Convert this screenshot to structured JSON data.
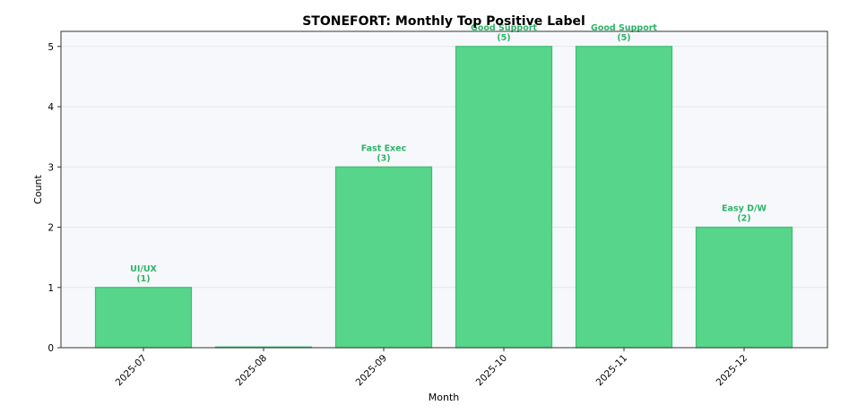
{
  "chart_data": {
    "type": "bar",
    "title": "STONEFORT: Monthly Top Positive Label",
    "xlabel": "Month",
    "ylabel": "Count",
    "categories": [
      "2025-07",
      "2025-08",
      "2025-09",
      "2025-10",
      "2025-11",
      "2025-12"
    ],
    "values": [
      1,
      0,
      3,
      5,
      5,
      2
    ],
    "bar_labels": [
      "UI/UX",
      "",
      "Fast Exec",
      "Good Support",
      "Good Support",
      "Easy D/W"
    ],
    "bar_counts": [
      "(1)",
      "",
      "(3)",
      "(5)",
      "(5)",
      "(2)"
    ],
    "yticks": [
      "0",
      "1",
      "2",
      "3",
      "4",
      "5"
    ],
    "ylim": [
      0,
      5.25
    ],
    "grid": "horizontal",
    "colors": {
      "bar_fill": "#57d58b",
      "bar_stroke": "#3bbf73",
      "label": "#2bb566",
      "plot_bg": "#f7f8fb",
      "grid": "#e3e6ea"
    }
  }
}
